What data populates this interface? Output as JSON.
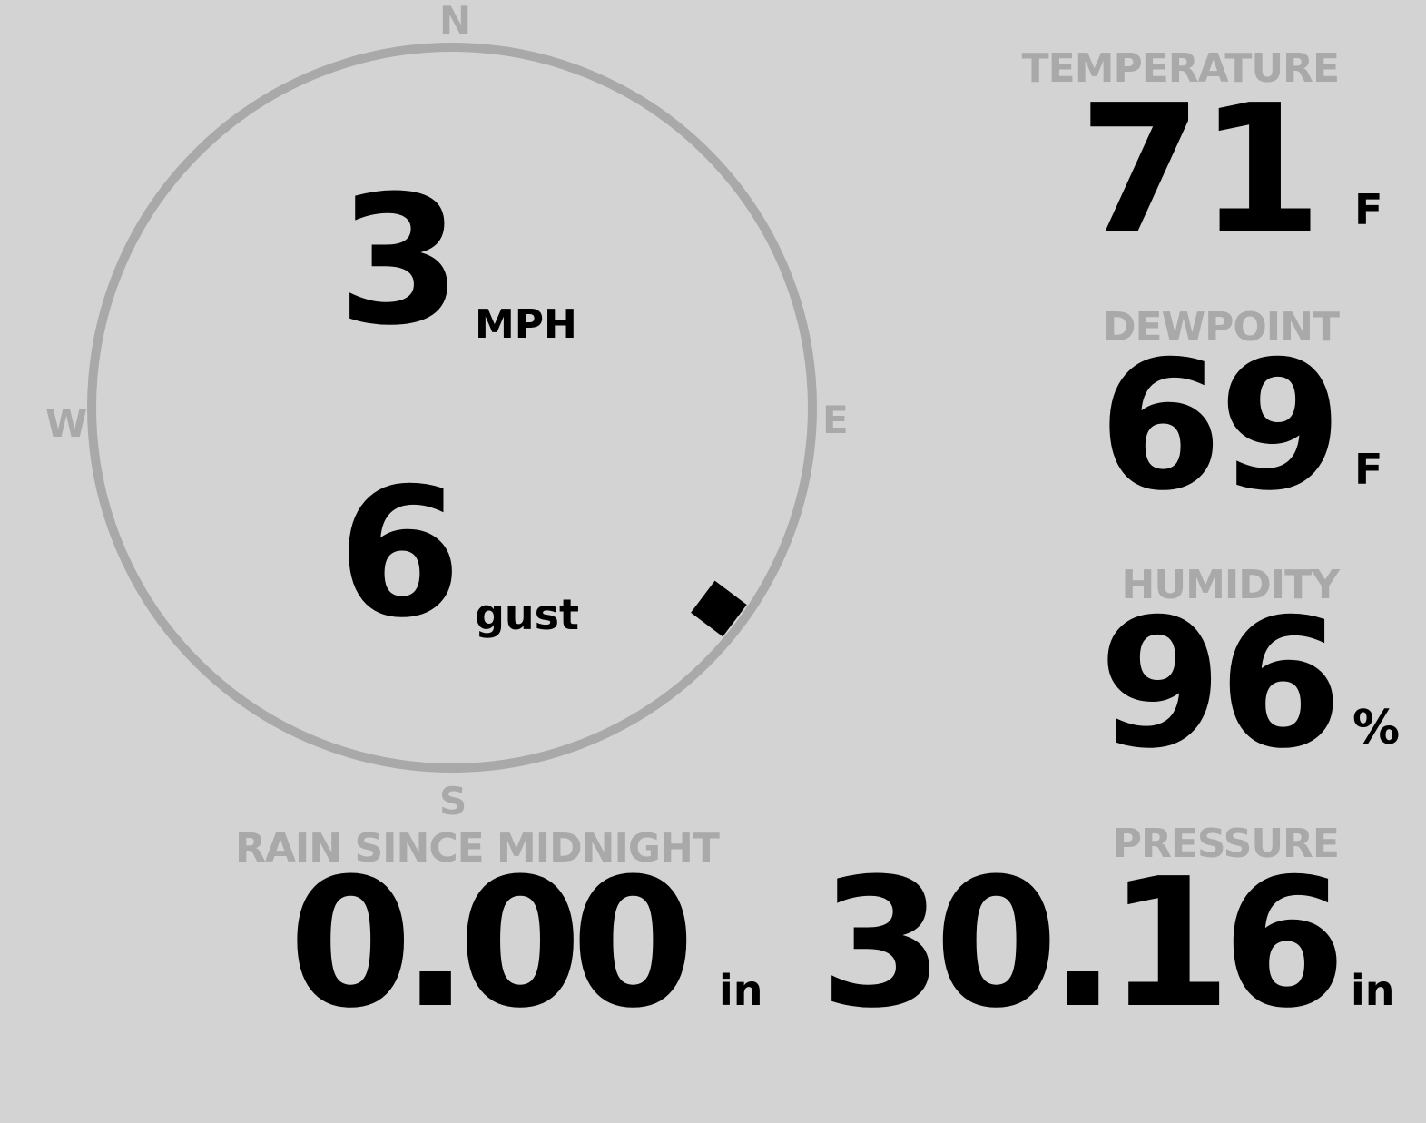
{
  "colors": {
    "background": "#d3d3d3",
    "ring": "#a9a9a9",
    "value": "#000000",
    "label": "#a9a9a9"
  },
  "wind": {
    "cardinals": {
      "n": "N",
      "e": "E",
      "s": "S",
      "w": "W"
    },
    "speed": "3",
    "speed_unit": "MPH",
    "gust": "6",
    "gust_unit": "gust",
    "direction_degrees": 127
  },
  "temperature": {
    "label": "TEMPERATURE",
    "value": "71",
    "unit": "F"
  },
  "dewpoint": {
    "label": "DEWPOINT",
    "value": "69",
    "unit": "F"
  },
  "humidity": {
    "label": "HUMIDITY",
    "value": "96",
    "unit": "%"
  },
  "rain": {
    "label": "RAIN SINCE MIDNIGHT",
    "value": "0.00",
    "unit": "in"
  },
  "pressure": {
    "label": "PRESSURE",
    "value": "30.16",
    "unit": "in"
  }
}
